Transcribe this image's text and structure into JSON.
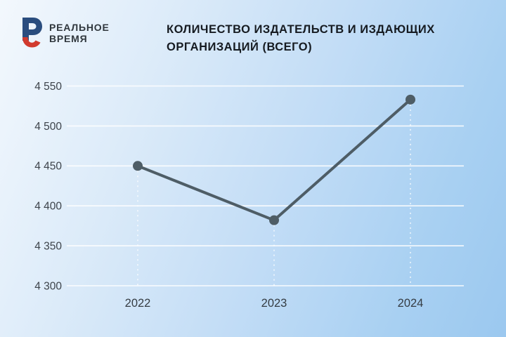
{
  "brand": {
    "name_line1": "РЕАЛЬНОЕ",
    "name_line2": "ВРЕМЯ",
    "logo_blue": "#2a4d7e",
    "logo_red": "#d13a2e"
  },
  "header": {
    "title_line1": "КОЛИЧЕСТВО ИЗДАТЕЛЬСТВ И ИЗДАЮЩИХ",
    "title_line2": "ОРГАНИЗАЦИЙ (ВСЕГО)"
  },
  "chart_data": {
    "type": "line",
    "title": "Количество издательств и издающих организаций (всего)",
    "categories": [
      "2022",
      "2023",
      "2024"
    ],
    "values": [
      4450,
      4382,
      4533
    ],
    "ylim": [
      4300,
      4550
    ],
    "ytick_step": 50,
    "ytick_labels": [
      "4 300",
      "4 350",
      "4 400",
      "4 450",
      "4 500",
      "4 550"
    ],
    "xlabel": "",
    "ylabel": "",
    "grid": true,
    "legend": "none",
    "line_color": "#4e5d66",
    "marker_color": "#4e5d66",
    "grid_color": "#ffffff",
    "axis_label_color": "#3d434a",
    "background_top_left": "#f3f8fd",
    "background_bottom_right": "#9bc8ef"
  }
}
